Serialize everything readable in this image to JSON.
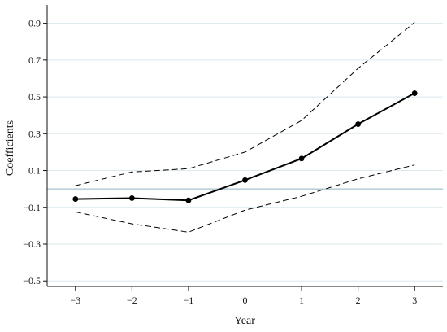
{
  "chart_data": {
    "type": "line",
    "title": "",
    "xlabel": "Year",
    "ylabel": "Coefficients",
    "x": [
      -3,
      -2,
      -1,
      0,
      1,
      2,
      3
    ],
    "x_tick_labels": [
      "−3",
      "−2",
      "−1",
      "0",
      "1",
      "2",
      "3"
    ],
    "y_ticks": [
      0.9,
      0.7,
      0.5,
      0.3,
      0.1,
      -0.1,
      -0.3,
      -0.5
    ],
    "y_tick_labels": [
      "0.9",
      "0.7",
      "0.5",
      "0.3",
      "0.1",
      "−0.1",
      "−0.3",
      "−0.5"
    ],
    "xlim": [
      -3.5,
      3.5
    ],
    "ylim": [
      -0.53,
      1.0
    ],
    "grid": "horizontal",
    "reference_lines": {
      "x": 0,
      "y": 0
    },
    "series": [
      {
        "role": "estimate",
        "style": "solid-with-markers",
        "values": [
          -0.055,
          -0.05,
          -0.062,
          0.048,
          0.165,
          0.352,
          0.52
        ]
      },
      {
        "role": "upper-bound",
        "style": "dashed",
        "values": [
          0.018,
          0.092,
          0.11,
          0.2,
          0.372,
          0.655,
          0.905
        ]
      },
      {
        "role": "lower-bound",
        "style": "dashed",
        "values": [
          -0.125,
          -0.19,
          -0.235,
          -0.115,
          -0.04,
          0.055,
          0.13
        ]
      }
    ],
    "colors": {
      "line": "#000000",
      "grid": "#dce8ee",
      "reference": "#8fb3bd",
      "axis": "#111111"
    }
  }
}
